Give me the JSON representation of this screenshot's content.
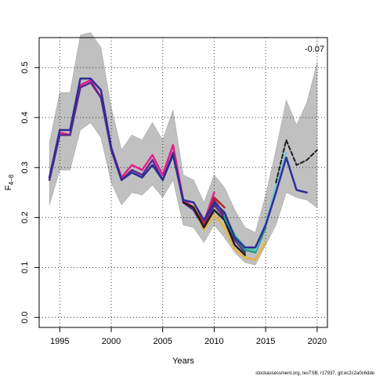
{
  "chart_data": {
    "type": "line",
    "xlabel": "Years",
    "ylabel": "F",
    "ylabel_sub": "4−8",
    "xlim": [
      1993,
      2021
    ],
    "ylim": [
      -0.02,
      0.56
    ],
    "x_ticks": [
      1995,
      2000,
      2005,
      2010,
      2015,
      2020
    ],
    "y_ticks": [
      0.0,
      0.1,
      0.2,
      0.3,
      0.4,
      0.5
    ],
    "x_tick_labels": [
      "1995",
      "2000",
      "2005",
      "2010",
      "2015",
      "2020"
    ],
    "y_tick_labels": [
      "0.0",
      "0.1",
      "0.2",
      "0.3",
      "0.4",
      "0.5"
    ],
    "grid": true,
    "annotation": "-0.07",
    "footer": "stockassessment.org, tesTSB, r17937, git:ec2c2a0c6dde",
    "band": {
      "color": "#c0c0c0",
      "x": [
        1994,
        1995,
        1996,
        1997,
        1998,
        1999,
        2000,
        2001,
        2002,
        2003,
        2004,
        2005,
        2006,
        2007,
        2008,
        2009,
        2010,
        2011,
        2012,
        2013,
        2014,
        2015,
        2016,
        2017,
        2018,
        2019,
        2020
      ],
      "upper": [
        0.35,
        0.45,
        0.45,
        0.565,
        0.57,
        0.54,
        0.42,
        0.335,
        0.365,
        0.355,
        0.39,
        0.355,
        0.415,
        0.285,
        0.275,
        0.23,
        0.285,
        0.26,
        0.215,
        0.18,
        0.17,
        0.245,
        0.335,
        0.435,
        0.385,
        0.43,
        0.51
      ],
      "lower": [
        0.225,
        0.295,
        0.295,
        0.375,
        0.39,
        0.36,
        0.27,
        0.225,
        0.25,
        0.245,
        0.265,
        0.24,
        0.275,
        0.185,
        0.18,
        0.15,
        0.185,
        0.16,
        0.13,
        0.11,
        0.105,
        0.145,
        0.185,
        0.25,
        0.24,
        0.235,
        0.22
      ]
    },
    "series": [
      {
        "color": "#e11e8c",
        "width": 2.5,
        "dash": "",
        "x": [
          1994,
          1995,
          1996,
          1997,
          1998,
          1999,
          2000,
          2001,
          2002,
          2003,
          2004,
          2005,
          2006,
          2007,
          2008,
          2009,
          2010
        ],
        "values": [
          0.28,
          0.37,
          0.365,
          0.465,
          0.475,
          0.44,
          0.34,
          0.28,
          0.305,
          0.295,
          0.325,
          0.285,
          0.345,
          0.235,
          0.22,
          0.19,
          0.25
        ]
      },
      {
        "color": "#b5282c",
        "width": 2.5,
        "dash": "",
        "x": [
          2008,
          2009,
          2010,
          2011
        ],
        "values": [
          0.225,
          0.185,
          0.24,
          0.22
        ]
      },
      {
        "color": "#8c1f5a",
        "width": 2.5,
        "dash": "",
        "x": [
          2010,
          2011,
          2012
        ],
        "values": [
          0.235,
          0.205,
          0.16
        ]
      },
      {
        "color": "#5a2a8c",
        "width": 2.5,
        "dash": "",
        "x": [
          1994,
          1995,
          1996,
          1997,
          1998,
          1999,
          2000,
          2001,
          2002,
          2003,
          2004,
          2005,
          2006,
          2007,
          2008,
          2009,
          2010,
          2011,
          2012,
          2013
        ],
        "values": [
          0.275,
          0.365,
          0.365,
          0.46,
          0.47,
          0.44,
          0.335,
          0.275,
          0.295,
          0.285,
          0.315,
          0.275,
          0.33,
          0.23,
          0.215,
          0.18,
          0.225,
          0.2,
          0.155,
          0.13
        ]
      },
      {
        "color": "#e8b43c",
        "width": 2.5,
        "dash": "",
        "x": [
          2008,
          2009,
          2010,
          2011,
          2012,
          2013,
          2014,
          2015
        ],
        "values": [
          0.225,
          0.175,
          0.205,
          0.18,
          0.135,
          0.12,
          0.115,
          0.15
        ]
      },
      {
        "color": "#1e1e1e",
        "width": 2.5,
        "dash": "",
        "x": [
          2007,
          2008,
          2009,
          2010,
          2011,
          2012,
          2013
        ],
        "values": [
          0.23,
          0.22,
          0.18,
          0.215,
          0.195,
          0.145,
          0.125
        ]
      },
      {
        "color": "#3cc896",
        "width": 2.5,
        "dash": "",
        "x": [
          2011,
          2012,
          2013,
          2014,
          2015,
          2016
        ],
        "values": [
          0.205,
          0.165,
          0.14,
          0.135,
          0.185,
          0.25
        ]
      },
      {
        "color": "#1e9b82",
        "width": 2.5,
        "dash": "",
        "x": [
          2011,
          2012,
          2013,
          2014,
          2015
        ],
        "values": [
          0.2,
          0.16,
          0.135,
          0.13,
          0.18
        ]
      },
      {
        "color": "#7ac8d6",
        "width": 2.5,
        "dash": "",
        "x": [
          2014,
          2015,
          2016,
          2017
        ],
        "values": [
          0.135,
          0.19,
          0.265,
          0.33
        ]
      },
      {
        "color": "#2d2d96",
        "width": 2.5,
        "dash": "",
        "x": [
          1994,
          1995,
          1996,
          1997,
          1998,
          1999,
          2000,
          2001,
          2002,
          2003,
          2004,
          2005,
          2006,
          2007,
          2008,
          2009,
          2010,
          2011,
          2012,
          2013,
          2014,
          2015,
          2016,
          2017,
          2018,
          2019
        ],
        "values": [
          0.28,
          0.375,
          0.375,
          0.478,
          0.478,
          0.455,
          0.34,
          0.275,
          0.29,
          0.28,
          0.305,
          0.275,
          0.325,
          0.235,
          0.23,
          0.195,
          0.23,
          0.21,
          0.16,
          0.14,
          0.14,
          0.185,
          0.25,
          0.32,
          0.255,
          0.25
        ]
      },
      {
        "color": "#1e1e1e",
        "width": 2.0,
        "dash": "5,3",
        "x": [
          2016,
          2017,
          2018,
          2019,
          2020
        ],
        "values": [
          0.27,
          0.355,
          0.305,
          0.315,
          0.335
        ]
      }
    ]
  }
}
